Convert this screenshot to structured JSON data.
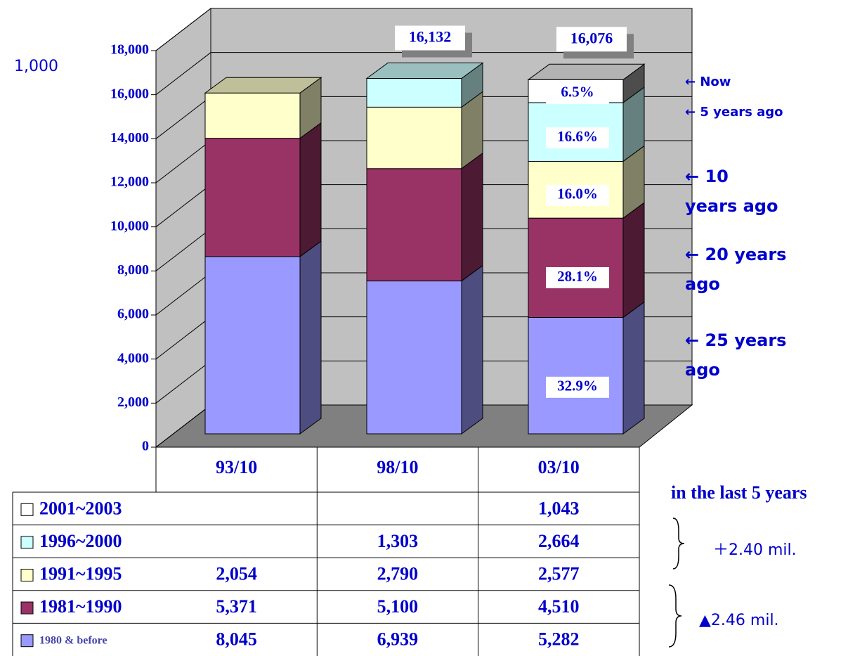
{
  "chart_data": {
    "type": "stacked-bar-3d",
    "y_unit_label": "1,000",
    "categories": [
      "93/10",
      "98/10",
      "03/10"
    ],
    "series": [
      {
        "name": "1980 & before",
        "color": "#9999ff",
        "values": [
          8045,
          6939,
          5282
        ],
        "value_labels": [
          "8,045",
          "6,939",
          "5,282"
        ],
        "share_labels": [
          null,
          null,
          "32.9%"
        ]
      },
      {
        "name": "1981~1990",
        "color": "#993366",
        "values": [
          5371,
          5100,
          4510
        ],
        "value_labels": [
          "5,371",
          "5,100",
          "4,510"
        ],
        "share_labels": [
          null,
          null,
          "28.1%"
        ]
      },
      {
        "name": "1991~1995",
        "color": "#ffffcc",
        "values": [
          2054,
          2790,
          2577
        ],
        "value_labels": [
          "2,054",
          "2,790",
          "2,577"
        ],
        "share_labels": [
          null,
          null,
          "16.0%"
        ]
      },
      {
        "name": "1996~2000",
        "color": "#ccffff",
        "values": [
          null,
          1303,
          2664
        ],
        "value_labels": [
          null,
          "1,303",
          "2,664"
        ],
        "share_labels": [
          null,
          null,
          "16.6%"
        ]
      },
      {
        "name": "2001~2003",
        "color": "#ffffff",
        "values": [
          null,
          null,
          1043
        ],
        "value_labels": [
          null,
          null,
          "1,043"
        ],
        "share_labels": [
          null,
          null,
          "6.5%"
        ]
      }
    ],
    "total_labels": [
      null,
      "16,132",
      "16,076"
    ],
    "ylim": [
      0,
      18000
    ],
    "yticks": [
      0,
      {
        "value": 2000,
        "label": "2,000"
      },
      {
        "value": 4000,
        "label": "4,000"
      },
      {
        "value": 6000,
        "label": "6,000"
      },
      {
        "value": 8000,
        "label": "8,000"
      },
      {
        "value": 10000,
        "label": "10,000"
      },
      {
        "value": 12000,
        "label": "12,000"
      },
      {
        "value": 14000,
        "label": "14,000"
      },
      {
        "value": 16000,
        "label": "16,000"
      },
      {
        "value": 18000,
        "label": "18,000"
      }
    ],
    "grid": true,
    "annotations": [
      "← Now",
      "← 5 years ago",
      "← 10\nyears ago",
      "← 20 years\nago",
      "← 25 years\nago"
    ],
    "table_note": "in the last 5 years",
    "change_labels": [
      "＋2.40 mil.",
      "▲2.46 mil."
    ]
  }
}
